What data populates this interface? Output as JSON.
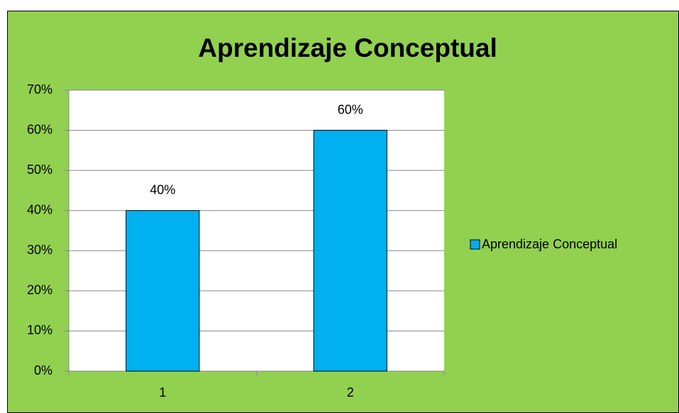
{
  "chart_data": {
    "type": "bar",
    "title": "Aprendizaje Conceptual",
    "categories": [
      "1",
      "2"
    ],
    "series": [
      {
        "name": "Aprendizaje Conceptual",
        "color": "#00b0f0",
        "values": [
          40,
          60
        ],
        "value_labels": [
          "40%",
          "60%"
        ]
      }
    ],
    "ylim": [
      0,
      70
    ],
    "yticks": [
      {
        "value": 0,
        "label": "0%"
      },
      {
        "value": 10,
        "label": "10%"
      },
      {
        "value": 20,
        "label": "20%"
      },
      {
        "value": 30,
        "label": "30%"
      },
      {
        "value": 40,
        "label": "40%"
      },
      {
        "value": 50,
        "label": "50%"
      },
      {
        "value": 60,
        "label": "60%"
      },
      {
        "value": 70,
        "label": "70%"
      }
    ],
    "grid": true,
    "legend": "right"
  }
}
